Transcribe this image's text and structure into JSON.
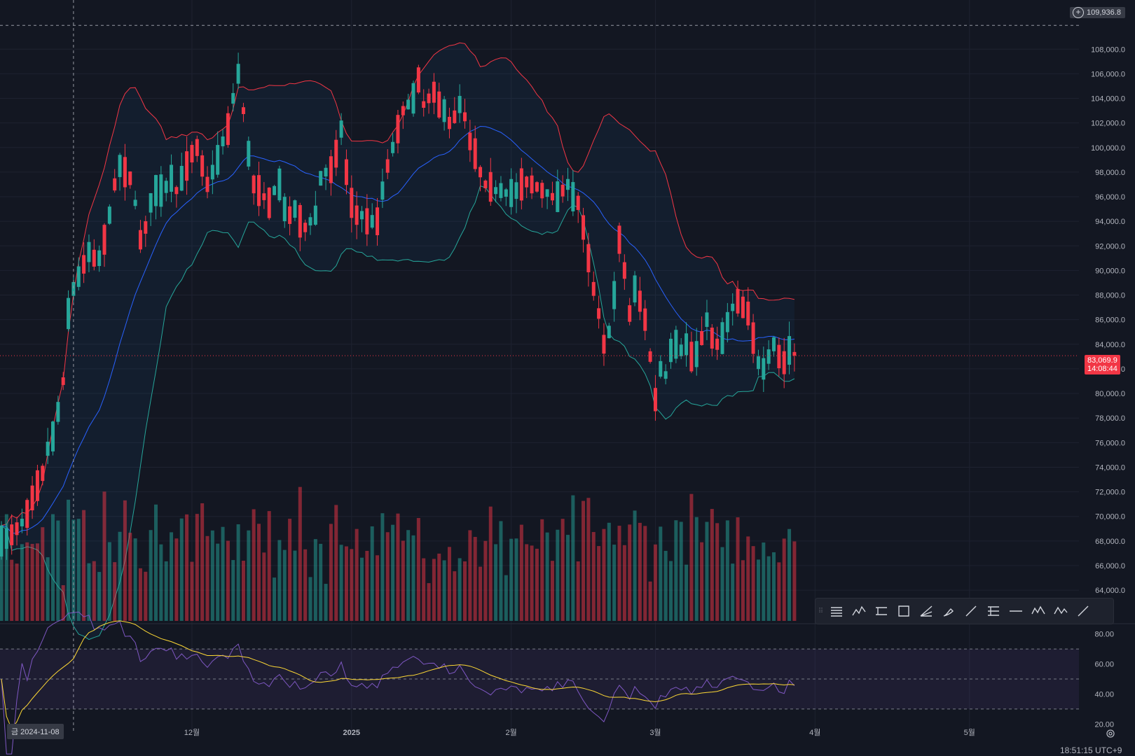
{
  "chart_data": {
    "type": "candlestick",
    "x_labels": [
      "12월",
      "2025",
      "2월",
      "3월",
      "4월",
      "5월"
    ],
    "x_label_dates": [
      "2024-12-01",
      "2025-01-01",
      "2025-02-01",
      "2025-03-01",
      "2025-04-01",
      "2025-05-01"
    ],
    "price_axis": {
      "labels": [
        "108,000.0",
        "106,000.0",
        "104,000.0",
        "102,000.0",
        "100,000.0",
        "98,000.0",
        "96,000.0",
        "94,000.0",
        "92,000.0",
        "90,000.0",
        "88,000.0",
        "86,000.0",
        "84,000.0",
        "82,000.0",
        "80,000.0",
        "78,000.0",
        "76,000.0",
        "74,000.0",
        "72,000.0",
        "70,000.0",
        "68,000.0",
        "66,000.0",
        "64,000.0"
      ],
      "range": [
        61500,
        112000
      ]
    },
    "crosshair_price": "109,936.8",
    "current_price": "83,069.9",
    "countdown": "14:08:44",
    "crosshair_date": "금 2024-11-08",
    "candles": {
      "start_date": "2024-10-25",
      "open_close_midpoints": [
        68000,
        68200,
        68500,
        69000,
        69500,
        70200,
        71500,
        72500,
        73500,
        75500,
        76500,
        78500,
        81000,
        86500,
        88500,
        89500,
        90500,
        91500,
        91000,
        91000,
        92500,
        94500,
        97000,
        98500,
        98000,
        97500,
        95500,
        92500,
        93500,
        95500,
        96500,
        96500,
        96800,
        97500,
        96500,
        97500,
        98500,
        99500,
        100000,
        98500,
        97000,
        98000,
        99000,
        100500,
        101500,
        104000,
        106000,
        103000,
        99500,
        97000,
        96500,
        96000,
        95500,
        96500,
        97000,
        95000,
        94500,
        95000,
        94000,
        93500,
        94000,
        94500,
        97500,
        98000,
        98200,
        99500,
        101500,
        98000,
        95500,
        94500,
        94500,
        94000,
        94000,
        94000,
        96500,
        98500,
        100000,
        101500,
        103000,
        103500,
        104000,
        105500,
        103500,
        104000,
        104500,
        103500,
        103000,
        102000,
        102500,
        103500,
        102500,
        100500,
        99500,
        98000,
        97000,
        96800,
        96500,
        96500,
        96300,
        96300,
        96500,
        97000,
        97200,
        97000,
        96800,
        96500,
        96300,
        96000,
        96000,
        96500,
        97000,
        96000,
        95500,
        93500,
        91000,
        88500,
        86500,
        84000,
        85000,
        88000,
        92500,
        90000,
        86500,
        88500,
        87500,
        86000,
        83000,
        79500,
        82000,
        81500,
        83500,
        84000,
        83500,
        84000,
        83000,
        83200,
        84500,
        86000,
        84500,
        84000,
        84500,
        85800,
        87000,
        87500,
        87000,
        86500,
        84500,
        82500,
        82000,
        83000,
        84000,
        83000,
        82500,
        83500,
        83069.9
      ]
    },
    "volume_axis_max": 100,
    "rsi_axis": {
      "labels": [
        "80.00",
        "60.00",
        "40.00",
        "20.00"
      ],
      "range": [
        15,
        85
      ],
      "levels": [
        70,
        50,
        30
      ]
    },
    "overlays": [
      "candles",
      "volume",
      "bollinger_bands",
      "rsi"
    ],
    "colors": {
      "up": "#26a69a",
      "down": "#f23645",
      "basis": "#2962ff",
      "upper_band": "#f23645",
      "lower_band": "#26a69a",
      "rsi": "#7e57c2",
      "rsi_ma": "#fdd835",
      "background": "#131722"
    }
  },
  "toolbar": {
    "grip_glyph": "⠿",
    "tools": [
      "horizontal-lines-icon",
      "abcd-pattern-icon",
      "parallel-lines-icon",
      "rectangle-icon",
      "fib-fan-icon",
      "brush-icon",
      "trend-line-icon",
      "ruler-lines-icon",
      "horizontal-ray-icon",
      "elliott-wave-icon",
      "wave-pattern-icon",
      "diagonal-line-icon"
    ]
  },
  "status": {
    "clock": "18:51:15 UTC+9"
  }
}
